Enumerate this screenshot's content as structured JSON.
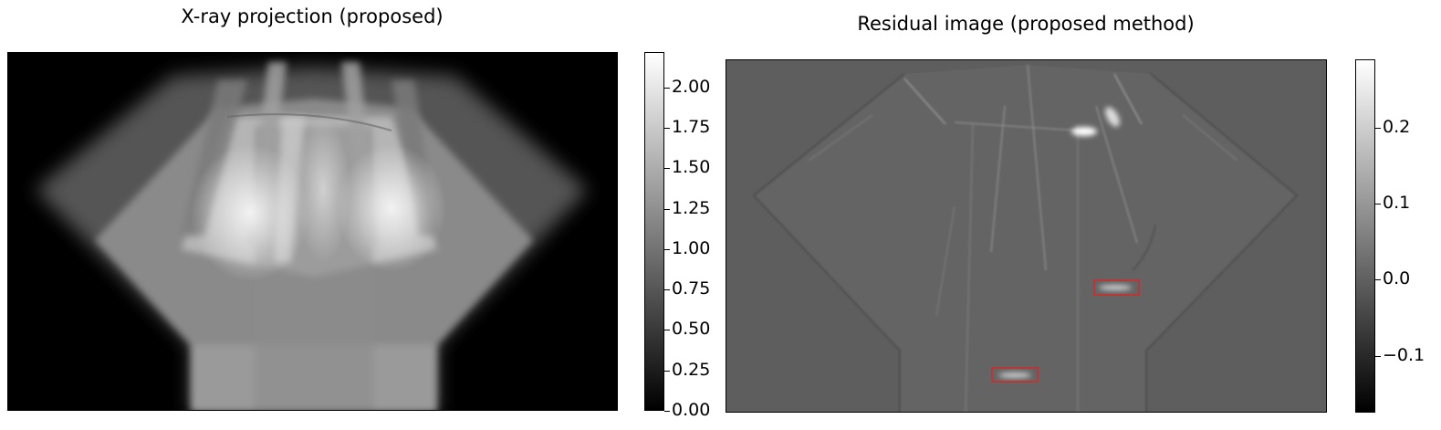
{
  "left_panel": {
    "title": "X-ray projection (proposed)",
    "colorbar": {
      "ticks": [
        "0.00",
        "0.25",
        "0.50",
        "0.75",
        "1.00",
        "1.25",
        "1.50",
        "1.75",
        "2.00"
      ],
      "range": [
        0.0,
        2.22
      ]
    }
  },
  "right_panel": {
    "title": "Residual image (proposed method)",
    "colorbar": {
      "ticks": [
        "−0.1",
        "0.0",
        "0.1",
        "0.2"
      ],
      "range": [
        -0.175,
        0.29
      ]
    }
  },
  "colors": {
    "highlight_box": "#d62728"
  }
}
